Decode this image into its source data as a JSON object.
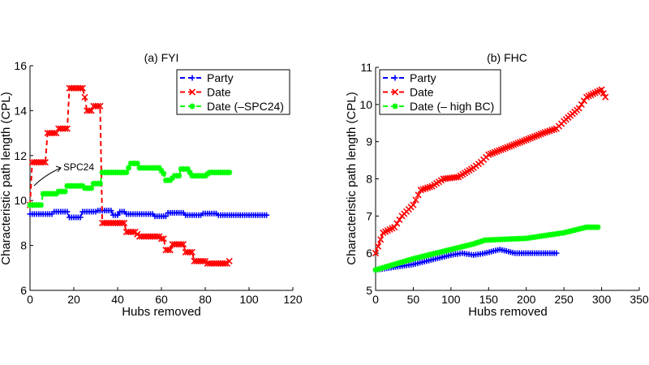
{
  "chart_data": [
    {
      "type": "line",
      "title": "(a) FYI",
      "xlabel": "Hubs removed",
      "ylabel": "Characteristic path length (CPL)",
      "xlim": [
        0,
        120
      ],
      "ylim": [
        6,
        16
      ],
      "xticks": [
        "0",
        "20",
        "40",
        "60",
        "80",
        "100",
        "120"
      ],
      "yticks": [
        "6",
        "8",
        "10",
        "12",
        "14",
        "16"
      ],
      "grid": false,
      "legend_position": "top-right",
      "annotation": "SPC24",
      "series": [
        {
          "name": "Party",
          "color": "#0000ff",
          "marker": "+",
          "points": [
            [
              0,
              9.4
            ],
            [
              10,
              9.4
            ],
            [
              11,
              9.5
            ],
            [
              17,
              9.5
            ],
            [
              18,
              9.25
            ],
            [
              23,
              9.25
            ],
            [
              24,
              9.5
            ],
            [
              30,
              9.5
            ],
            [
              31,
              9.55
            ],
            [
              37,
              9.55
            ],
            [
              38,
              9.35
            ],
            [
              40,
              9.35
            ],
            [
              41,
              9.5
            ],
            [
              43,
              9.5
            ],
            [
              44,
              9.4
            ],
            [
              56,
              9.4
            ],
            [
              57,
              9.3
            ],
            [
              62,
              9.3
            ],
            [
              63,
              9.45
            ],
            [
              70,
              9.45
            ],
            [
              71,
              9.35
            ],
            [
              78,
              9.35
            ],
            [
              79,
              9.42
            ],
            [
              85,
              9.42
            ],
            [
              86,
              9.35
            ],
            [
              108,
              9.35
            ]
          ]
        },
        {
          "name": "Date",
          "color": "#ff0000",
          "marker": "x",
          "points": [
            [
              0,
              9.8
            ],
            [
              1,
              11.7
            ],
            [
              7,
              11.7
            ],
            [
              8,
              13
            ],
            [
              12,
              13
            ],
            [
              13,
              13.2
            ],
            [
              17,
              13.2
            ],
            [
              18,
              15
            ],
            [
              24,
              15
            ],
            [
              25,
              14.6
            ],
            [
              26,
              14
            ],
            [
              28,
              14
            ],
            [
              29,
              14.2
            ],
            [
              32,
              14.2
            ],
            [
              33,
              9
            ],
            [
              43,
              9
            ],
            [
              44,
              8.6
            ],
            [
              48,
              8.6
            ],
            [
              50,
              8.4
            ],
            [
              59,
              8.4
            ],
            [
              60,
              8.3
            ],
            [
              61,
              8.3
            ],
            [
              62,
              7.8
            ],
            [
              64,
              7.8
            ],
            [
              65,
              8.05
            ],
            [
              70,
              8.05
            ],
            [
              71,
              7.7
            ],
            [
              74,
              7.7
            ],
            [
              75,
              7.3
            ],
            [
              80,
              7.3
            ],
            [
              81,
              7.2
            ],
            [
              90,
              7.2
            ],
            [
              91,
              7.3
            ]
          ]
        },
        {
          "name": "Date (–SPC24)",
          "color": "#00ff00",
          "marker": "*",
          "points": [
            [
              0,
              9.8
            ],
            [
              5,
              9.8
            ],
            [
              6,
              10.3
            ],
            [
              12,
              10.3
            ],
            [
              13,
              10.4
            ],
            [
              16,
              10.4
            ],
            [
              17,
              10.65
            ],
            [
              24,
              10.65
            ],
            [
              25,
              10.55
            ],
            [
              28,
              10.55
            ],
            [
              29,
              10.75
            ],
            [
              32,
              10.75
            ],
            [
              33,
              11.25
            ],
            [
              44,
              11.25
            ],
            [
              46,
              11.65
            ],
            [
              49,
              11.65
            ],
            [
              50,
              11.45
            ],
            [
              59,
              11.45
            ],
            [
              61,
              11.2
            ],
            [
              62,
              10.9
            ],
            [
              64,
              10.9
            ],
            [
              66,
              11.1
            ],
            [
              68,
              11.1
            ],
            [
              69,
              11.4
            ],
            [
              72,
              11.4
            ],
            [
              74,
              11.1
            ],
            [
              80,
              11.1
            ],
            [
              82,
              11.25
            ],
            [
              91,
              11.25
            ]
          ]
        }
      ]
    },
    {
      "type": "line",
      "title": "(b) FHC",
      "xlabel": "Hubs removed",
      "ylabel": "Characteristic path length (CPL)",
      "xlim": [
        0,
        350
      ],
      "ylim": [
        5,
        11
      ],
      "xticks": [
        "0",
        "50",
        "100",
        "150",
        "200",
        "250",
        "300",
        "350"
      ],
      "yticks": [
        "5",
        "6",
        "7",
        "8",
        "9",
        "10",
        "11"
      ],
      "grid": false,
      "legend_position": "top-left",
      "series": [
        {
          "name": "Party",
          "color": "#0000ff",
          "marker": "+",
          "points": [
            [
              0,
              5.55
            ],
            [
              50,
              5.7
            ],
            [
              100,
              5.95
            ],
            [
              115,
              6.0
            ],
            [
              130,
              5.95
            ],
            [
              145,
              6.0
            ],
            [
              165,
              6.1
            ],
            [
              185,
              6.0
            ],
            [
              240,
              6.0
            ]
          ]
        },
        {
          "name": "Date",
          "color": "#ff0000",
          "marker": "x",
          "points": [
            [
              0,
              6.0
            ],
            [
              10,
              6.55
            ],
            [
              25,
              6.7
            ],
            [
              35,
              7.0
            ],
            [
              50,
              7.3
            ],
            [
              60,
              7.7
            ],
            [
              75,
              7.8
            ],
            [
              90,
              8.0
            ],
            [
              110,
              8.05
            ],
            [
              130,
              8.3
            ],
            [
              140,
              8.45
            ],
            [
              150,
              8.65
            ],
            [
              175,
              8.85
            ],
            [
              200,
              9.05
            ],
            [
              225,
              9.25
            ],
            [
              240,
              9.35
            ],
            [
              250,
              9.55
            ],
            [
              270,
              9.9
            ],
            [
              280,
              10.2
            ],
            [
              300,
              10.4
            ],
            [
              305,
              10.2
            ]
          ]
        },
        {
          "name": "Date (– high BC)",
          "color": "#00ff00",
          "marker": "*",
          "points": [
            [
              0,
              5.55
            ],
            [
              50,
              5.85
            ],
            [
              100,
              6.1
            ],
            [
              130,
              6.25
            ],
            [
              145,
              6.35
            ],
            [
              200,
              6.4
            ],
            [
              250,
              6.55
            ],
            [
              280,
              6.7
            ],
            [
              295,
              6.7
            ]
          ]
        }
      ]
    }
  ]
}
